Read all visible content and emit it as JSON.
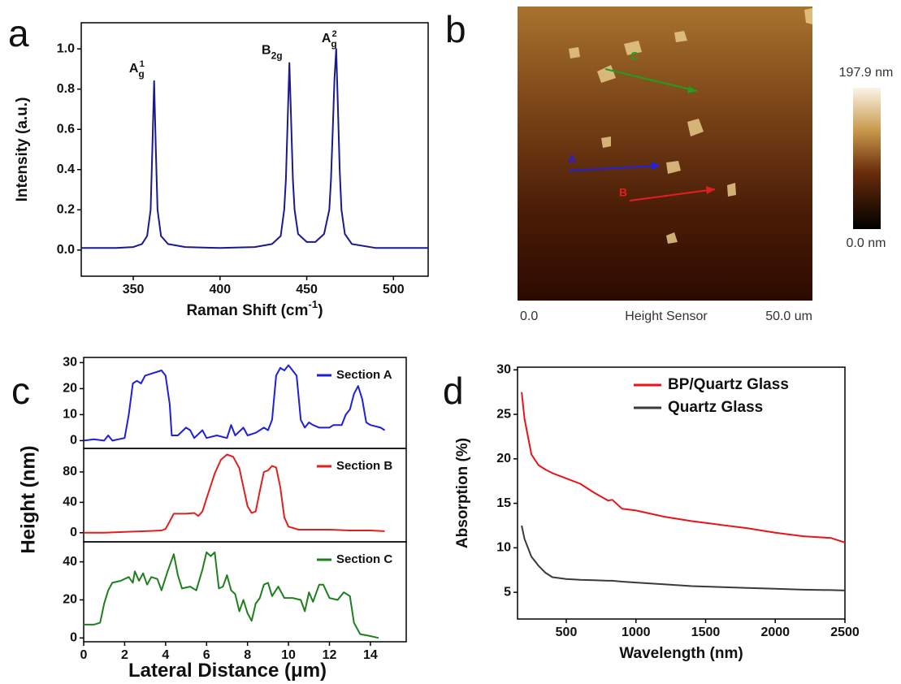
{
  "chart_data": [
    {
      "type": "line",
      "panel": "a",
      "ylabel": "Intensity (a.u.)",
      "xlabel": {
        "text": "Raman Shift (cm",
        "sup": "-1",
        "after": ")"
      },
      "x": [
        320,
        340,
        350,
        355,
        358,
        360,
        361,
        362,
        363,
        364,
        366,
        370,
        380,
        400,
        420,
        430,
        435,
        437,
        438,
        439,
        440,
        441,
        442,
        443,
        445,
        450,
        455,
        460,
        463,
        464,
        465,
        466,
        467,
        468,
        469,
        470,
        472,
        476,
        490,
        520
      ],
      "values": [
        0.01,
        0.01,
        0.015,
        0.03,
        0.07,
        0.2,
        0.5,
        0.84,
        0.5,
        0.2,
        0.07,
        0.03,
        0.015,
        0.01,
        0.015,
        0.03,
        0.07,
        0.2,
        0.35,
        0.65,
        0.93,
        0.65,
        0.35,
        0.2,
        0.08,
        0.04,
        0.04,
        0.08,
        0.2,
        0.35,
        0.6,
        0.85,
        1.0,
        0.7,
        0.4,
        0.2,
        0.08,
        0.03,
        0.01,
        0.01
      ],
      "color": "#1a1a8c",
      "xlim": [
        320,
        520
      ],
      "xticks": [
        350,
        400,
        450,
        500
      ],
      "ylim": [
        -0.13,
        1.13
      ],
      "yticks": [
        {
          "value": 0,
          "label": "0.0"
        },
        {
          "value": 0.2,
          "label": "0.2"
        },
        {
          "value": 0.4,
          "label": "0.4"
        },
        {
          "value": 0.6,
          "label": "0.6"
        },
        {
          "value": 0.8,
          "label": "0.8"
        },
        {
          "value": 1.0,
          "label": "1.0"
        }
      ],
      "annotations": [
        {
          "text": "A",
          "sub": "g",
          "sup": "1"
        },
        {
          "text": "B",
          "sub": "2g"
        },
        {
          "text": "A",
          "sub": "g",
          "sup": "2"
        }
      ]
    },
    {
      "type": "line",
      "panel": "c",
      "x": [
        0,
        0.5,
        1,
        1.2,
        1.4,
        2,
        2.2,
        2.4,
        2.6,
        2.8,
        3,
        3.4,
        3.8,
        4,
        4.2,
        4.3,
        4.6,
        5,
        5.2,
        5.4,
        5.8,
        6,
        6.5,
        7,
        7.2,
        7.4,
        7.8,
        8,
        8.4,
        8.8,
        9,
        9.2,
        9.4,
        9.6,
        9.8,
        10,
        10.2,
        10.4,
        10.6,
        10.8,
        11,
        11.2,
        11.5,
        12,
        12.2,
        12.6,
        12.8,
        13,
        13.2,
        13.4,
        13.6,
        13.8,
        14,
        14.5,
        14.7
      ],
      "series": [
        {
          "name": "Section A",
          "color": "#1f1fdc",
          "values": [
            0,
            0.5,
            0,
            2,
            0,
            1,
            10,
            22,
            23,
            22,
            25,
            26,
            27,
            25,
            14,
            2,
            2,
            5,
            4,
            1,
            4,
            1,
            2,
            1,
            6,
            2,
            5,
            2,
            3,
            5,
            4,
            8,
            25,
            28,
            27,
            29,
            27,
            25,
            8,
            5,
            7,
            6,
            5,
            5,
            6,
            6,
            10,
            12,
            18,
            21,
            16,
            7,
            6,
            5,
            4
          ]
        }
      ],
      "xlim": [
        0,
        15.75
      ],
      "ylim": [
        -3,
        32
      ],
      "yticks": [
        0,
        10,
        20,
        30
      ]
    },
    {
      "type": "line",
      "ylabel": "Height (nm)",
      "x": [
        0,
        1,
        2,
        3,
        3.8,
        4,
        4.2,
        4.4,
        5,
        5.4,
        5.6,
        5.8,
        6,
        6.4,
        6.7,
        7,
        7.3,
        7.6,
        7.8,
        8,
        8.2,
        8.4,
        8.6,
        8.8,
        9,
        9.2,
        9.4,
        9.6,
        9.8,
        10,
        10.5,
        11,
        12,
        13,
        14,
        14.7
      ],
      "series": [
        {
          "name": "Section B",
          "color": "#e01f1f",
          "values": [
            0,
            0,
            1,
            2,
            3,
            5,
            15,
            25,
            25,
            26,
            22,
            28,
            45,
            78,
            96,
            103,
            100,
            85,
            60,
            35,
            26,
            28,
            55,
            80,
            82,
            88,
            86,
            60,
            20,
            8,
            4,
            4,
            4,
            3,
            3,
            2
          ]
        }
      ],
      "xlim": [
        0,
        15.75
      ],
      "ylim": [
        -12,
        111
      ],
      "yticks": [
        0,
        40,
        80
      ]
    },
    {
      "type": "line",
      "xlabel": {
        "text": "Lateral Distance (μm)"
      },
      "x": [
        0,
        0.5,
        0.8,
        1,
        1.2,
        1.4,
        1.8,
        2.2,
        2.4,
        2.5,
        2.7,
        2.9,
        3.1,
        3.3,
        3.6,
        3.8,
        4.1,
        4.4,
        4.6,
        4.8,
        5.2,
        5.5,
        5.8,
        6,
        6.2,
        6.4,
        6.6,
        6.8,
        7,
        7.2,
        7.4,
        7.6,
        7.8,
        8,
        8.2,
        8.4,
        8.6,
        8.8,
        9,
        9.2,
        9.5,
        9.8,
        10.2,
        10.6,
        10.8,
        11,
        11.2,
        11.5,
        11.7,
        12,
        12.4,
        12.7,
        13,
        13.2,
        13.5,
        14,
        14.4
      ],
      "series": [
        {
          "name": "Section C",
          "color": "#1f7f1f",
          "values": [
            7,
            7,
            8,
            18,
            25,
            29,
            30,
            32,
            29,
            35,
            30,
            34,
            28,
            32,
            31,
            25,
            35,
            44,
            33,
            26,
            27,
            25,
            36,
            45,
            43,
            45,
            26,
            27,
            33,
            25,
            23,
            14,
            20,
            13,
            9,
            18,
            21,
            28,
            29,
            22,
            27,
            21,
            21,
            20,
            14,
            24,
            19,
            28,
            28,
            21,
            20,
            24,
            22,
            8,
            2,
            1,
            0
          ]
        }
      ],
      "xlim": [
        0,
        15.75
      ],
      "xticks": [
        0,
        2,
        4,
        6,
        8,
        10,
        12,
        14
      ],
      "ylim": [
        -2,
        50.5
      ],
      "yticks": [
        0,
        20,
        40
      ]
    },
    {
      "type": "line",
      "panel": "d",
      "ylabel": "Absorption (%)",
      "xlabel": {
        "text": "Wavelength (nm)"
      },
      "x": [
        180,
        200,
        250,
        300,
        350,
        400,
        500,
        600,
        700,
        800,
        830,
        900,
        1000,
        1200,
        1400,
        1600,
        1800,
        2000,
        2200,
        2400,
        2500
      ],
      "series": [
        {
          "name": "BP/Quartz Glass",
          "color": "#e8141a",
          "values": [
            27.5,
            24.5,
            20.5,
            19.3,
            18.8,
            18.4,
            17.8,
            17.2,
            16.2,
            15.3,
            15.4,
            14.4,
            14.2,
            13.5,
            13,
            12.6,
            12.2,
            11.7,
            11.3,
            11.1,
            10.6
          ]
        },
        {
          "name": "Quartz Glass",
          "color": "#3a3a3a",
          "values": [
            12.5,
            11,
            9,
            8,
            7.2,
            6.7,
            6.5,
            6.4,
            6.35,
            6.3,
            6.3,
            6.2,
            6.1,
            5.9,
            5.7,
            5.6,
            5.5,
            5.4,
            5.3,
            5.25,
            5.2
          ]
        }
      ],
      "xlim": [
        150,
        2500
      ],
      "xticks": [
        500,
        1000,
        1500,
        2000,
        2500
      ],
      "ylim": [
        2,
        30.3
      ],
      "yticks": [
        5,
        10,
        15,
        20,
        25,
        30
      ]
    }
  ],
  "afm_image": {
    "panel": "b",
    "colorbar": {
      "max_label": "197.9 nm",
      "min_label": "0.0 nm"
    },
    "x_start": "0.0",
    "caption": "Height Sensor",
    "x_end": "50.0 um",
    "markers": [
      "A",
      "B",
      "C"
    ]
  }
}
